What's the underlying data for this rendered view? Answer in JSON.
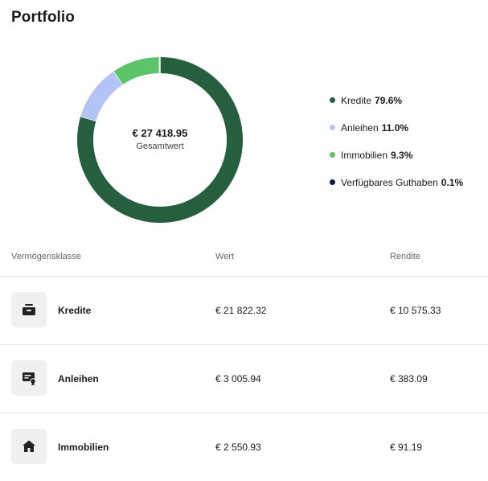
{
  "page": {
    "title": "Portfolio"
  },
  "summary": {
    "total_value": "€ 27 418.95",
    "total_label": "Gesamtwert"
  },
  "chart_data": {
    "type": "pie",
    "variant": "donut",
    "center_text": "€ 27 418.95",
    "center_subtext": "Gesamtwert",
    "legend_position": "right",
    "slices": [
      {
        "label": "Kredite",
        "value": 79.6,
        "percent_label": "79.6%",
        "color": "#265f3d"
      },
      {
        "label": "Anleihen",
        "value": 11.0,
        "percent_label": "11.0%",
        "color": "#b3c4f5"
      },
      {
        "label": "Immobilien",
        "value": 9.3,
        "percent_label": "9.3%",
        "color": "#5cc46a"
      },
      {
        "label": "Verfügbares Guthaben",
        "value": 0.1,
        "percent_label": "0.1%",
        "color": "#0a1a44"
      }
    ]
  },
  "table": {
    "headers": [
      "Vermögensklasse",
      "Wert",
      "Rendite"
    ],
    "rows": [
      {
        "icon": "wallet-icon",
        "name": "Kredite",
        "value": "€ 21 822.32",
        "return": "€ 10 575.33"
      },
      {
        "icon": "certificate-icon",
        "name": "Anleihen",
        "value": "€ 3 005.94",
        "return": "€ 383.09"
      },
      {
        "icon": "house-icon",
        "name": "Immobilien",
        "value": "€ 2 550.93",
        "return": "€ 91.19"
      }
    ]
  }
}
